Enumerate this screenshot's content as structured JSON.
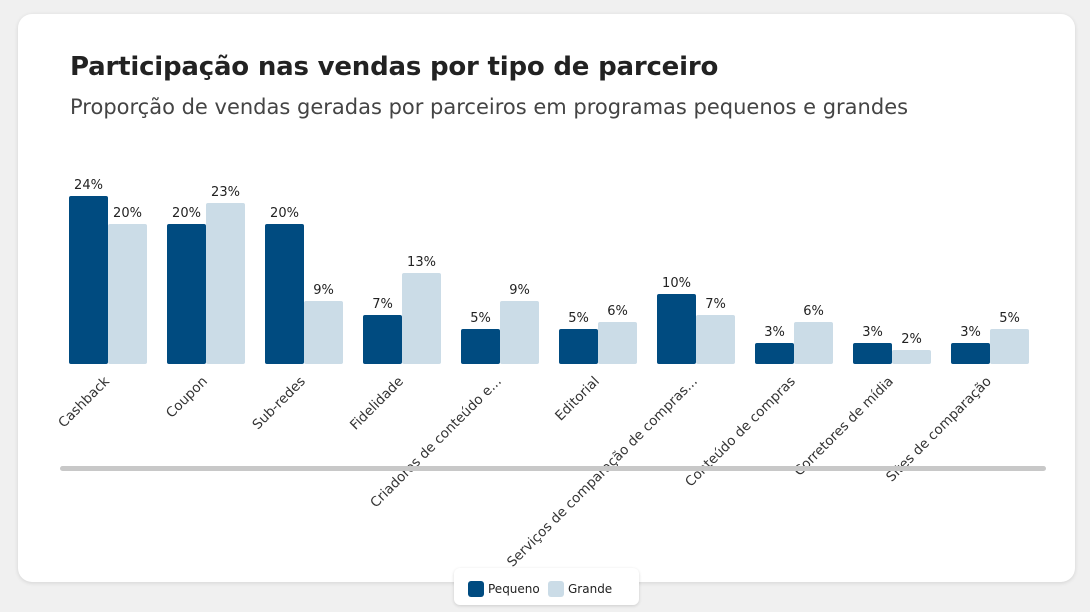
{
  "header": {
    "title": "Participação nas vendas por tipo de parceiro",
    "subtitle": "Proporção de vendas geradas por parceiros em programas pequenos e grandes"
  },
  "colors": {
    "pequeno": "#004b80",
    "grande": "#cbdce7",
    "scrollbar": "#c8c8c8"
  },
  "legend": {
    "pequeno_label": "Pequeno",
    "grande_label": "Grande"
  },
  "chart_data": {
    "type": "bar",
    "title": "Participação nas vendas por tipo de parceiro",
    "subtitle": "Proporção de vendas geradas por parceiros em programas pequenos e grandes",
    "categories": [
      "Cashback",
      "Coupon",
      "Sub-redes",
      "Fidelidade",
      "Criadores de conteúdo e...",
      "Editorial",
      "Serviços de comparação de compras...",
      "Conteúdo de compras",
      "Corretores de mídia",
      "Sites de comparação"
    ],
    "series": [
      {
        "name": "Pequeno",
        "values": [
          24,
          20,
          20,
          7,
          5,
          5,
          10,
          3,
          3,
          3
        ]
      },
      {
        "name": "Grande",
        "values": [
          20,
          23,
          9,
          13,
          9,
          6,
          7,
          6,
          2,
          5
        ]
      }
    ],
    "unit": "%",
    "ylim": [
      0,
      24
    ],
    "grid": false,
    "legend_position": "bottom"
  }
}
